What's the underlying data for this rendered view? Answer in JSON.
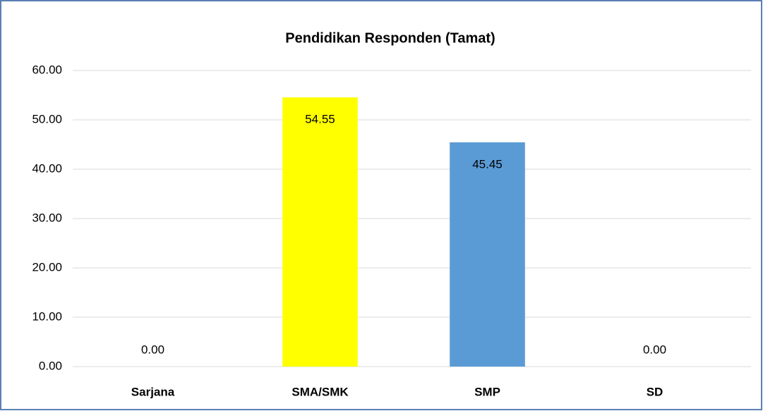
{
  "chart_data": {
    "type": "bar",
    "title": "Pendidikan Responden (Tamat)",
    "categories": [
      "Sarjana",
      "SMA/SMK",
      "SMP",
      "SD"
    ],
    "values": [
      0,
      54.55,
      45.45,
      0
    ],
    "value_labels": [
      "0.00",
      "54.55",
      "45.45",
      "0.00"
    ],
    "colors": [
      "#5b9bd5",
      "#ffff00",
      "#5b9bd5",
      "#5b9bd5"
    ],
    "ylim": [
      0,
      60
    ],
    "yticks": [
      {
        "value": 0,
        "label": "0.00"
      },
      {
        "value": 10,
        "label": "10.00"
      },
      {
        "value": 20,
        "label": "20.00"
      },
      {
        "value": 30,
        "label": "30.00"
      },
      {
        "value": 40,
        "label": "40.00"
      },
      {
        "value": 50,
        "label": "50.00"
      },
      {
        "value": 60,
        "label": "60.00"
      }
    ],
    "grid": true
  }
}
